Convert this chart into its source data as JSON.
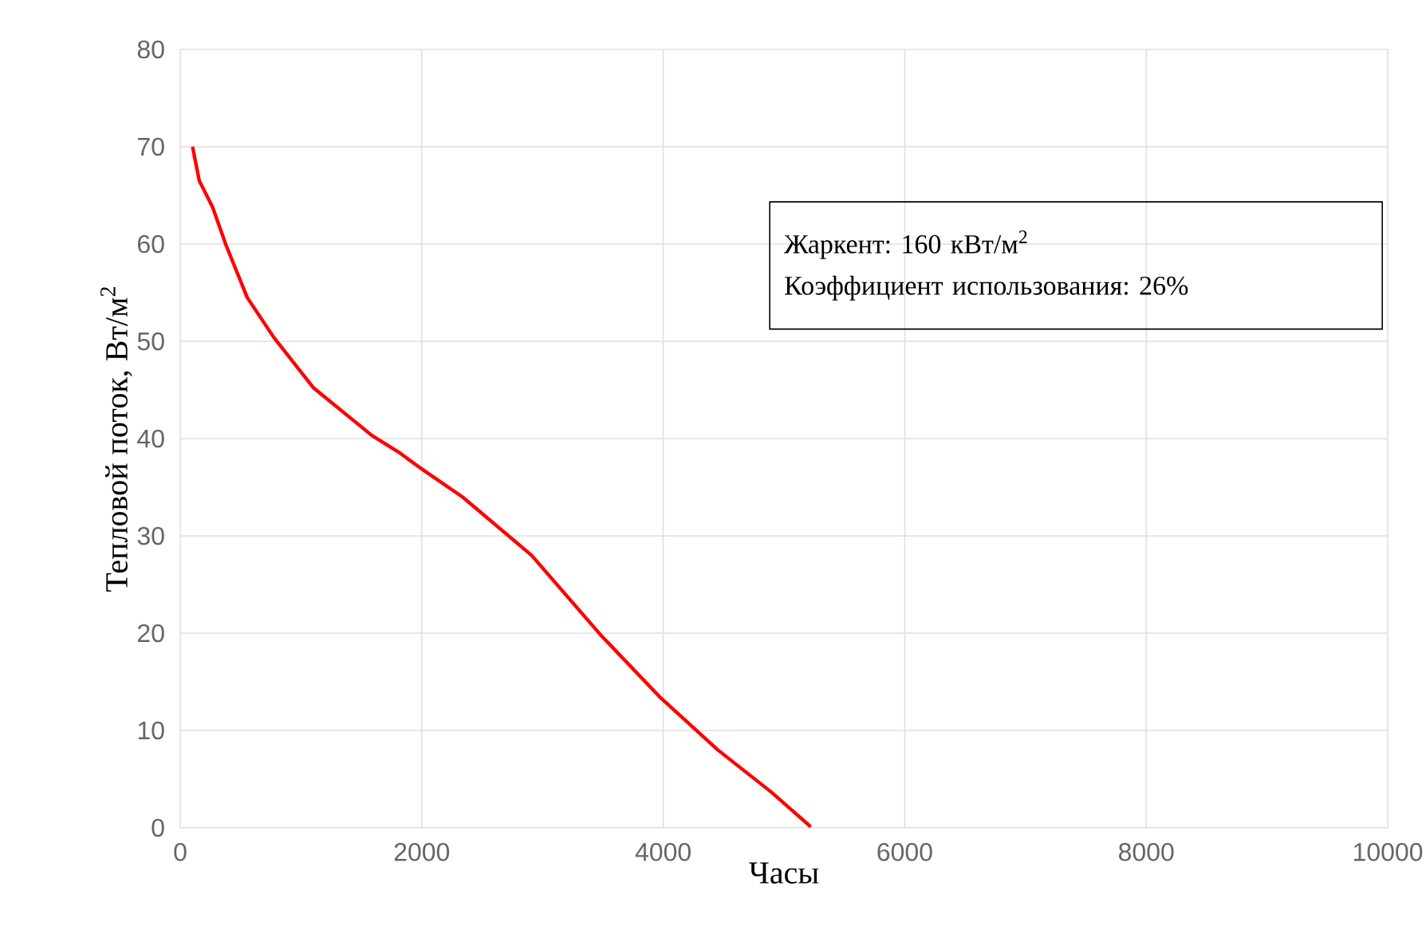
{
  "chart_data": {
    "type": "line",
    "xlabel": "Часы",
    "ylabel": "Тепловой поток, Вт/м$^{2}$",
    "annotations": [
      "Жаркент: 160 кВт/м$^{2}$",
      "Коэффициент использования: 26%"
    ],
    "xlim": [
      0,
      10000
    ],
    "ylim": [
      0,
      80
    ],
    "xticks": [
      0,
      2000,
      4000,
      6000,
      8000,
      10000
    ],
    "yticks": [
      0,
      10,
      20,
      30,
      40,
      50,
      60,
      70,
      80
    ],
    "grid": true,
    "line_style": "solid",
    "series": [
      {
        "color": "#ff0000",
        "x": [
          102,
          158,
          268,
          379,
          555,
          775,
          1105,
          1590,
          1810,
          1986,
          2338,
          2910,
          3483,
          3967,
          4452,
          4892,
          5222
        ],
        "values": [
          70.0,
          66.5,
          63.8,
          59.9,
          54.5,
          50.4,
          45.2,
          40.3,
          38.6,
          37.0,
          34.0,
          28.0,
          19.8,
          13.5,
          8.0,
          3.7,
          0.1
        ]
      }
    ]
  }
}
